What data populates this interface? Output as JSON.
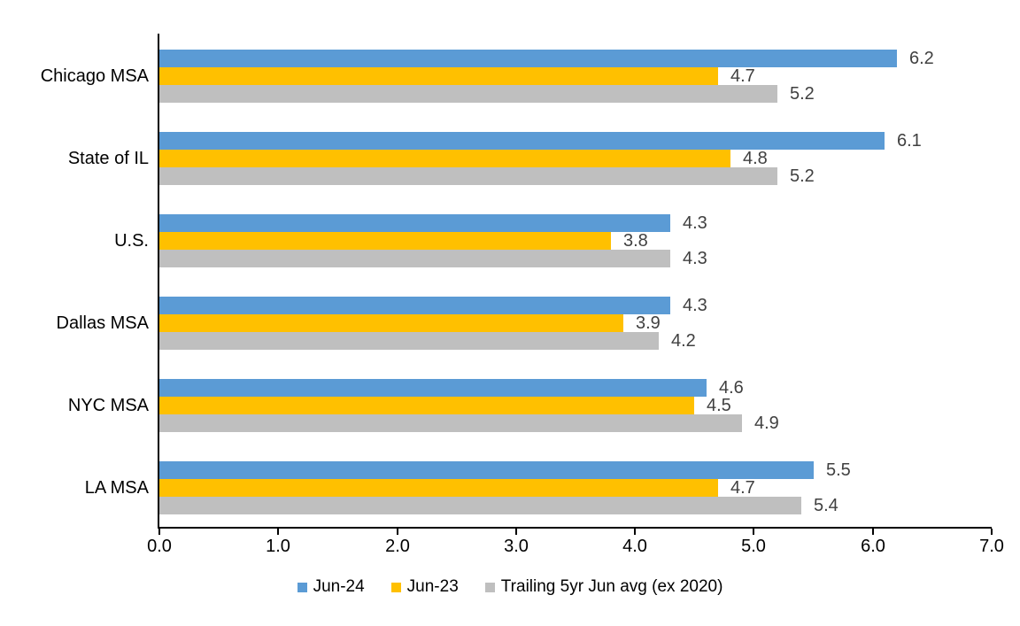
{
  "chart_data": {
    "type": "bar",
    "orientation": "horizontal",
    "title": "",
    "categories": [
      "Chicago MSA",
      "State of IL",
      "U.S.",
      "Dallas MSA",
      "NYC MSA",
      "LA MSA"
    ],
    "series": [
      {
        "name": "Jun-24",
        "color": "#5B9BD5",
        "values": [
          6.2,
          6.1,
          4.3,
          4.3,
          4.6,
          5.5
        ]
      },
      {
        "name": "Jun-23",
        "color": "#FFC000",
        "values": [
          4.7,
          4.8,
          3.8,
          3.9,
          4.5,
          4.7
        ]
      },
      {
        "name": "Trailing 5yr Jun avg (ex 2020)",
        "color": "#BFBFBF",
        "values": [
          5.2,
          5.2,
          4.3,
          4.2,
          4.9,
          5.4
        ]
      }
    ],
    "data_labels_shown": true,
    "x_axis": {
      "min": 0,
      "max": 7,
      "tick_step": 1,
      "tick_labels": [
        "0.0",
        "1.0",
        "2.0",
        "3.0",
        "4.0",
        "5.0",
        "6.0",
        "7.0"
      ]
    },
    "grid": "off",
    "legend_position": "bottom",
    "colors": {
      "axis": "#000000",
      "value_label": "#404040",
      "text": "#000000",
      "background": "#FFFFFF"
    }
  }
}
